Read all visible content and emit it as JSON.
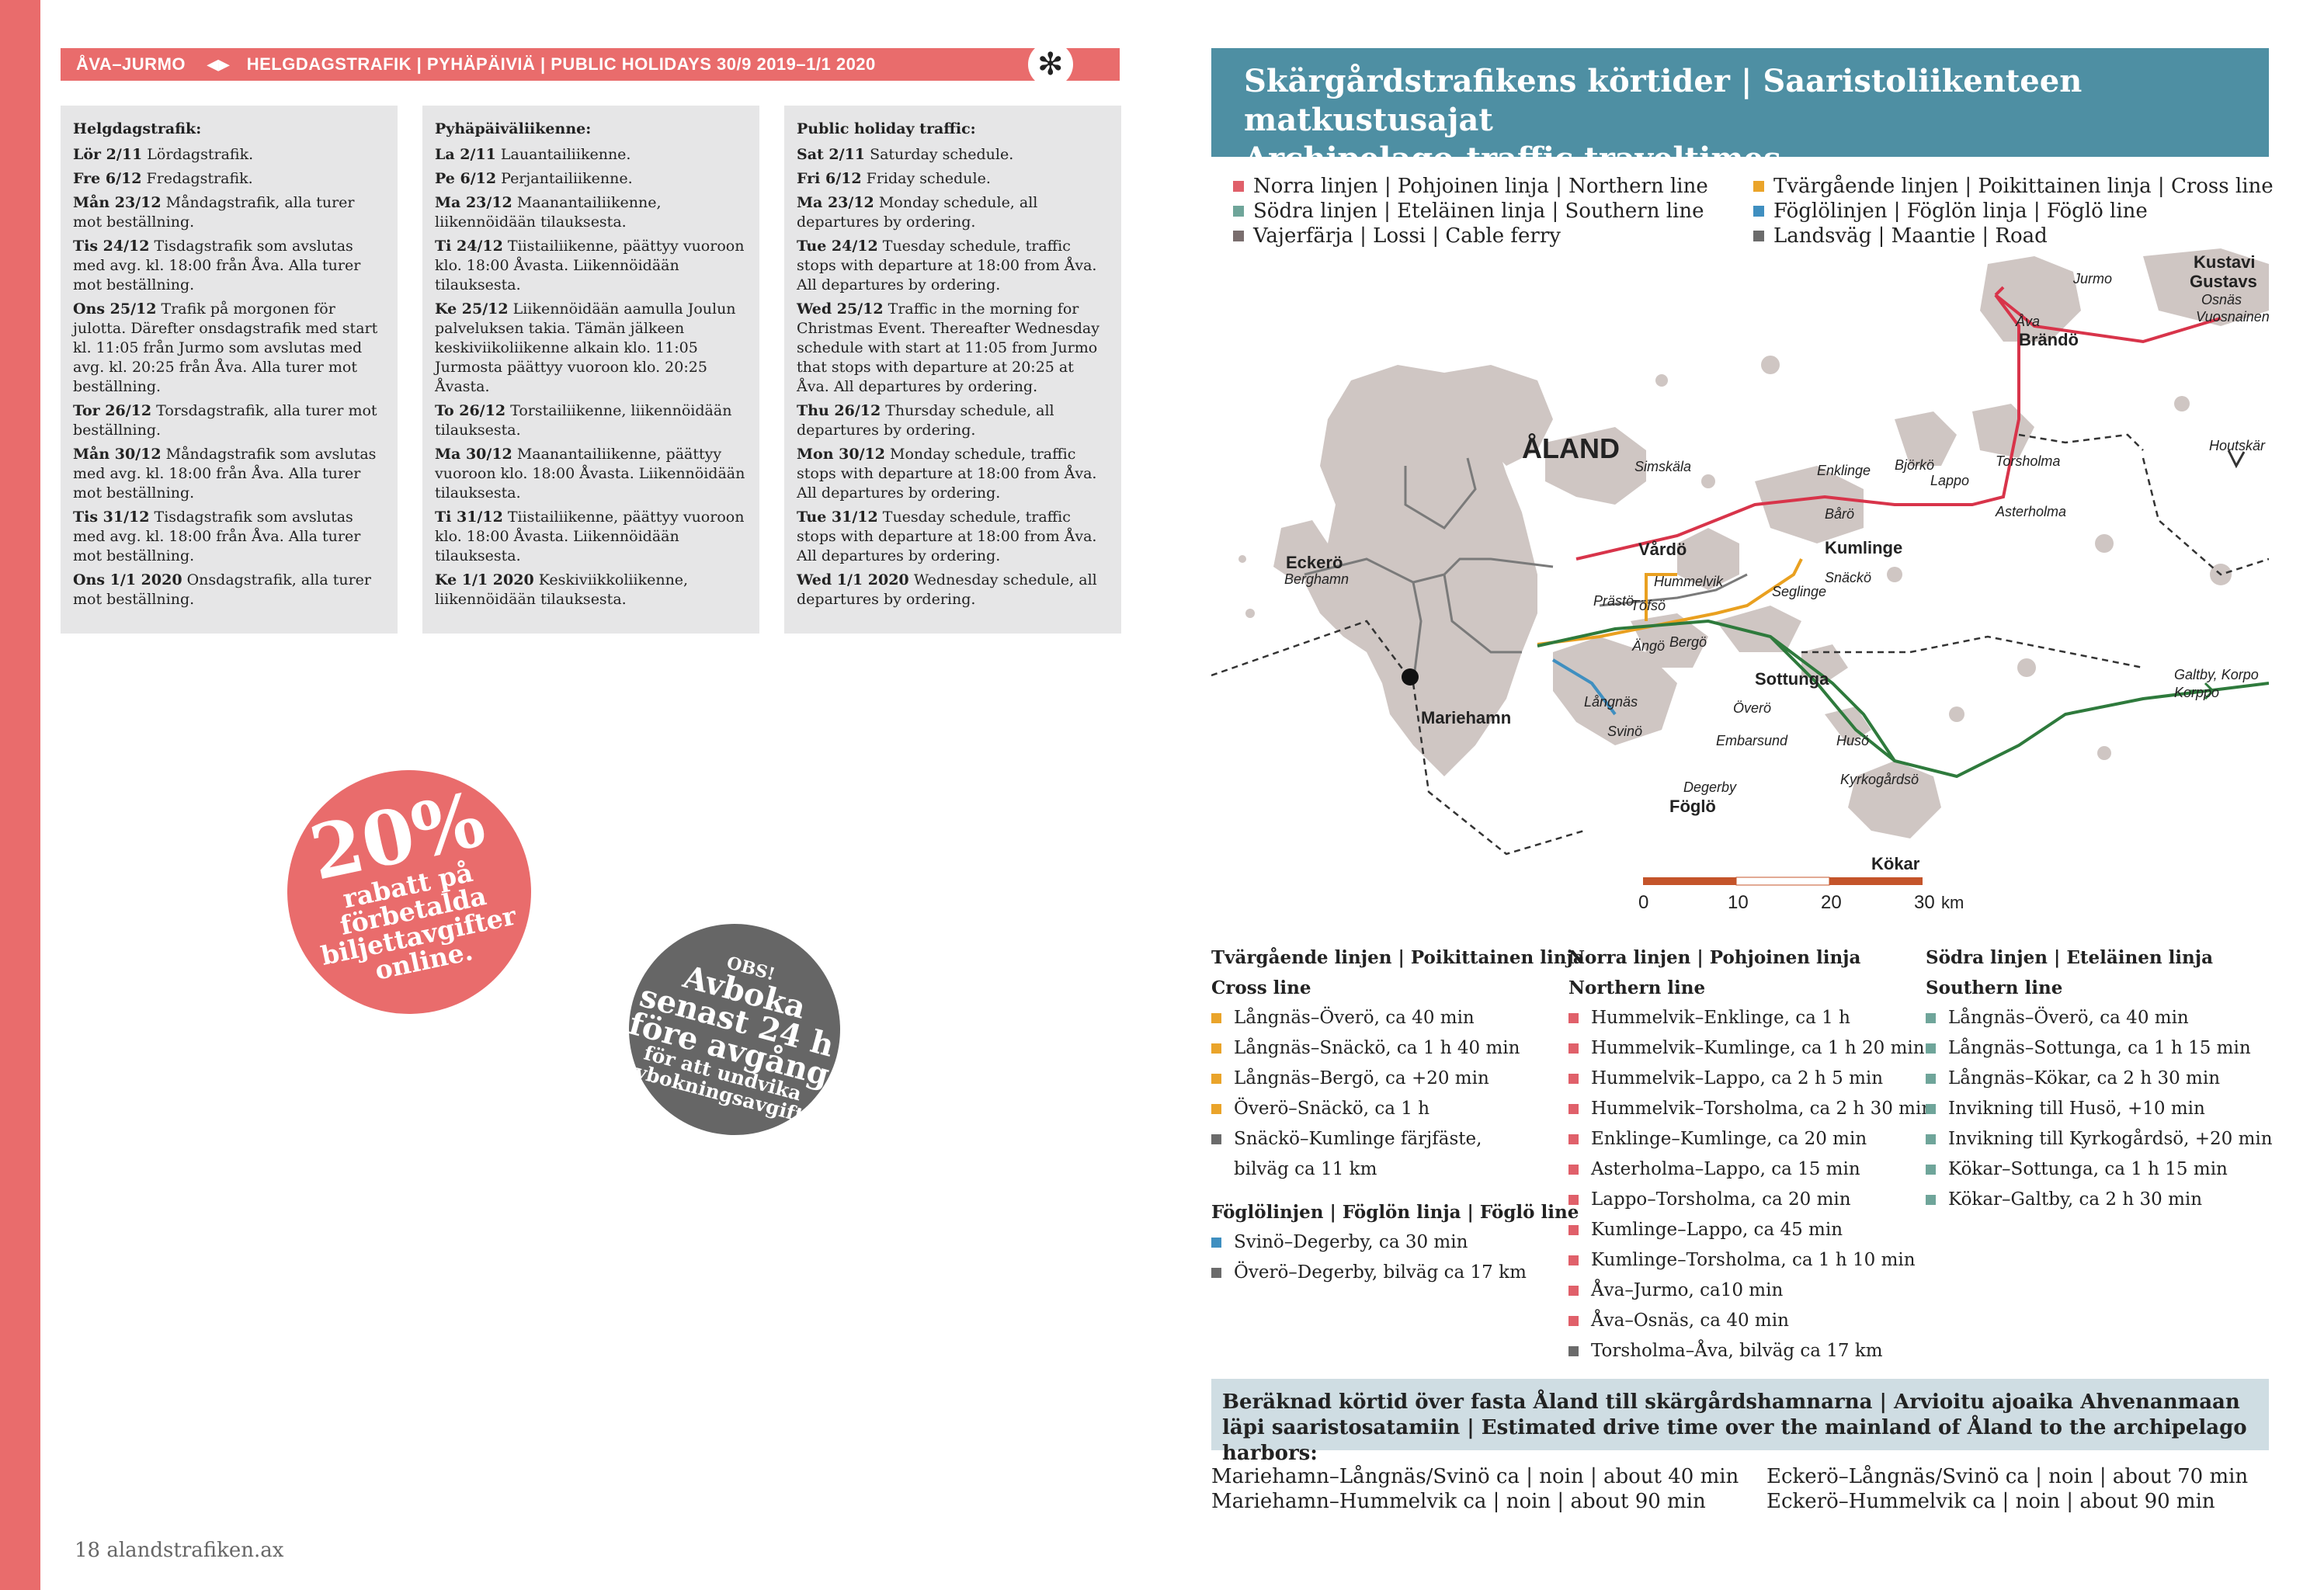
{
  "header": {
    "route": "ÅVA–JURMO",
    "arrows": "◀▶",
    "title": "HELGDAGSTRAFIK | PYHÄPÄIVIÄ | PUBLIC HOLIDAYS 30/9 2019–1/1 2020",
    "snow_icon": "✻"
  },
  "columns": [
    {
      "heading": "Helgdagstrafik:",
      "entries": [
        {
          "d": "Lör 2/11",
          "t": " Lördagstrafik."
        },
        {
          "d": "Fre 6/12",
          "t": " Fredagstrafik."
        },
        {
          "d": "Mån 23/12",
          "t": " Måndagstrafik, alla turer mot beställning."
        },
        {
          "d": "Tis 24/12",
          "t": " Tisdagstrafik som avslutas med avg. kl. 18:00 från Åva. Alla turer mot beställning."
        },
        {
          "d": "Ons 25/12",
          "t": " Trafik på morgonen för julotta. Därefter onsdagstrafik med start kl. 11:05 från Jurmo som avslutas med avg. kl. 20:25 från Åva. Alla turer mot beställning."
        },
        {
          "d": "Tor 26/12",
          "t": " Torsdagstrafik, alla turer mot beställning."
        },
        {
          "d": "Mån 30/12",
          "t": " Måndagstrafik som avslutas med avg. kl. 18:00 från Åva. Alla turer mot beställning."
        },
        {
          "d": "Tis 31/12",
          "t": " Tisdagstrafik som avslutas med avg. kl. 18:00 från Åva. Alla turer mot beställning."
        },
        {
          "d": "Ons 1/1 2020",
          "t": " Onsdagstrafik, alla turer mot beställning."
        }
      ]
    },
    {
      "heading": "Pyhäpäiväliikenne:",
      "entries": [
        {
          "d": "La 2/11",
          "t": " Lauantailiikenne."
        },
        {
          "d": "Pe 6/12",
          "t": " Perjantailiikenne."
        },
        {
          "d": "Ma 23/12",
          "t": " Maanantailiikenne, liikennöidään tilauksesta."
        },
        {
          "d": "Ti 24/12",
          "t": " Tiistailiikenne, päättyy vuoroon klo. 18:00 Åvasta. Liikennöidään tilauksesta."
        },
        {
          "d": "Ke 25/12",
          "t": " Liikennöidään aamulla Joulun palveluksen takia. Tämän jälkeen keskiviikoliikenne alkain klo. 11:05 Jurmosta päättyy vuoroon klo. 20:25 Åvasta."
        },
        {
          "d": "To 26/12",
          "t": " Torstailiikenne, liikennöidään tilauksesta."
        },
        {
          "d": "Ma 30/12",
          "t": " Maanantailiikenne, päättyy vuoroon klo. 18:00 Åvasta. Liikennöidään tilauksesta."
        },
        {
          "d": "Ti 31/12",
          "t": " Tiistailiikenne, päättyy vuoroon klo. 18:00 Åvasta. Liikennöidään tilauksesta."
        },
        {
          "d": "Ke 1/1 2020",
          "t": " Keskiviikkoliikenne, liikennöidään tilauksesta."
        }
      ]
    },
    {
      "heading": "Public holiday traffic:",
      "entries": [
        {
          "d": "Sat 2/11",
          "t": " Saturday schedule."
        },
        {
          "d": "Fri 6/12",
          "t": " Friday schedule."
        },
        {
          "d": "Ma 23/12",
          "t": " Monday schedule, all departures by ordering."
        },
        {
          "d": "Tue 24/12",
          "t": " Tuesday schedule, traffic stops with departure at 18:00 from Åva. All departures by ordering."
        },
        {
          "d": "Wed 25/12",
          "t": " Traffic in the morning for Christmas Event. Thereafter Wednesday schedule with start at 11:05 from Jurmo that stops with departure at 20:25 at Åva. All departures by ordering."
        },
        {
          "d": "Thu 26/12",
          "t": " Thursday schedule, all departures by ordering."
        },
        {
          "d": "Mon 30/12",
          "t": " Monday schedule, traffic stops with departure at 18:00 from Åva. All departures by ordering."
        },
        {
          "d": "Tue 31/12",
          "t": " Tuesday schedule, traffic stops with departure at 18:00 from Åva. All departures by ordering."
        },
        {
          "d": "Wed 1/1 2020",
          "t": " Wednesday schedule, all departures by ordering."
        }
      ]
    }
  ],
  "promo": {
    "pct": "20%",
    "l1": "rabatt på",
    "l2": "förbetalda",
    "l3": "biljettavgifter",
    "l4": "online."
  },
  "obs": {
    "l1": "OBS!",
    "l2": "Avboka",
    "l3": "senast 24 h",
    "l4": "före avgång",
    "l5": "för att undvika",
    "l6": "avbokningsavgift!"
  },
  "footer": "18  alandstrafiken.ax",
  "title": {
    "l1": "Skärgårdstrafikens körtider | Saaristoliikenteen matkustusajat",
    "l2": "Archipelago-traffic traveltimes"
  },
  "legend": {
    "left": [
      {
        "label": "Norra linjen | Pohjoinen linja | Northern line",
        "color": "#e0606a"
      },
      {
        "label": "Södra linjen | Eteläinen linja | Southern line",
        "color": "#6fa59a"
      },
      {
        "label": "Vajerfärja | Lossi | Cable ferry",
        "color": "#7a6e6e"
      }
    ],
    "right": [
      {
        "label": "Tvärgående linjen | Poikittainen linja | Cross line",
        "color": "#eaa42a"
      },
      {
        "label": "Föglölinjen | Föglön linja | Föglö line",
        "color": "#3f8fc0"
      },
      {
        "label": "Landsväg | Maantie | Road",
        "color": "#6b6b6b"
      }
    ]
  },
  "map": {
    "places": {
      "aland": "ÅLAND",
      "eckero": "Eckerö",
      "berghamn": "Berghamn",
      "mariehamn": "Mariehamn",
      "vardo": "Vårdö",
      "simskala": "Simskäla",
      "hummelvik": "Hummelvik",
      "prasto": "Prästö",
      "tosso": "Töfsö",
      "ango": "Ängö",
      "bergo": "Bergö",
      "langnas": "Långnäs",
      "svino": "Svinö",
      "degerby": "Degerby",
      "foglo": "Föglö",
      "overo": "Överö",
      "embarsund": "Embarsund",
      "sottunga": "Sottunga",
      "seglinge": "Seglinge",
      "snacko": "Snäckö",
      "kumlinge": "Kumlinge",
      "enklinge": "Enklinge",
      "baro": "Bårö",
      "bjorko": "Björkö",
      "lappo": "Lappo",
      "torsholma": "Torsholma",
      "asterholma": "Asterholma",
      "brando": "Brändö",
      "ava": "Åva",
      "jurmo": "Jurmo",
      "kustavi": "Kustavi",
      "gustavs": "Gustavs",
      "osnas": "Osnäs",
      "vuosnainen": "Vuosnainen",
      "houtskar": "Houtskär",
      "galtby": "Galtby, Korpo",
      "korppo": "Korppo",
      "huso": "Husö",
      "kyrkogardso": "Kyrkogårdsö",
      "kokar": "Kökar"
    },
    "scale": {
      "t0": "0",
      "t1": "10",
      "t2": "20",
      "t3": "30",
      "unit": "km"
    }
  },
  "cross": {
    "h1": "Tvärgående linjen | Poikittainen linja",
    "h2": "Cross line",
    "items": [
      {
        "label": "Långnäs–Överö, ca 40 min",
        "color": "#eaa42a"
      },
      {
        "label": "Långnäs–Snäckö, ca 1 h 40 min",
        "color": "#eaa42a"
      },
      {
        "label": "Långnäs–Bergö, ca +20 min",
        "color": "#eaa42a"
      },
      {
        "label": "Överö–Snäckö, ca 1 h",
        "color": "#eaa42a"
      },
      {
        "label": "Snäckö–Kumlinge färjfäste,",
        "color": "#6b6b6b"
      },
      {
        "label": "bilväg ca 11 km",
        "color": ""
      }
    ]
  },
  "foglo": {
    "h1": "Föglölinjen | Föglön linja | Föglö line",
    "items": [
      {
        "label": "Svinö–Degerby, ca 30 min",
        "color": "#3f8fc0"
      },
      {
        "label": "Överö–Degerby, bilväg ca 17 km",
        "color": "#6b6b6b"
      }
    ]
  },
  "north": {
    "h1": "Norra linjen | Pohjoinen linja",
    "h2": "Northern line",
    "items": [
      {
        "label": "Hummelvik–Enklinge, ca 1 h",
        "color": "#e0606a"
      },
      {
        "label": "Hummelvik–Kumlinge, ca 1 h 20 min",
        "color": "#e0606a"
      },
      {
        "label": "Hummelvik–Lappo, ca 2 h 5 min",
        "color": "#e0606a"
      },
      {
        "label": "Hummelvik–Torsholma, ca 2 h 30 min",
        "color": "#e0606a"
      },
      {
        "label": "Enklinge–Kumlinge, ca 20 min",
        "color": "#e0606a"
      },
      {
        "label": "Asterholma–Lappo, ca 15 min",
        "color": "#e0606a"
      },
      {
        "label": "Lappo–Torsholma, ca 20 min",
        "color": "#e0606a"
      },
      {
        "label": "Kumlinge–Lappo, ca 45 min",
        "color": "#e0606a"
      },
      {
        "label": "Kumlinge–Torsholma, ca 1 h 10 min",
        "color": "#e0606a"
      },
      {
        "label": "Åva–Jurmo, ca10 min",
        "color": "#e0606a"
      },
      {
        "label": "Åva–Osnäs, ca 40 min",
        "color": "#e0606a"
      },
      {
        "label": "Torsholma–Åva, bilväg ca 17 km",
        "color": "#6b6b6b"
      }
    ]
  },
  "south": {
    "h1": "Södra linjen | Eteläinen linja",
    "h2": "Southern line",
    "items": [
      {
        "label": "Långnäs–Överö, ca 40 min",
        "color": "#6fa59a"
      },
      {
        "label": "Långnäs–Sottunga, ca 1 h 15 min",
        "color": "#6fa59a"
      },
      {
        "label": "Långnäs–Kökar, ca 2 h 30 min",
        "color": "#6fa59a"
      },
      {
        "label": "Invikning till Husö, +10 min",
        "color": "#6fa59a"
      },
      {
        "label": "Invikning till Kyrkogårdsö, +20 min",
        "color": "#6fa59a"
      },
      {
        "label": "Kökar–Sottunga, ca 1 h 15 min",
        "color": "#6fa59a"
      },
      {
        "label": "Kökar–Galtby, ca 2 h 30 min",
        "color": "#6fa59a"
      }
    ]
  },
  "drive": {
    "heading": "Beräknad körtid över fasta Åland till skärgårdshamnarna | Arvioitu ajoaika Ahvenanmaan läpi saaristosatamiin | Estimated drive time over the mainland of Åland to the archipelago harbors:",
    "left": [
      "Mariehamn–Långnäs/Svinö ca | noin | about 40 min",
      "Mariehamn–Hummelvik ca | noin | about 90 min"
    ],
    "right": [
      "Eckerö–Långnäs/Svinö ca | noin | about 70 min",
      "Eckerö–Hummelvik ca | noin | about 90 min"
    ]
  }
}
